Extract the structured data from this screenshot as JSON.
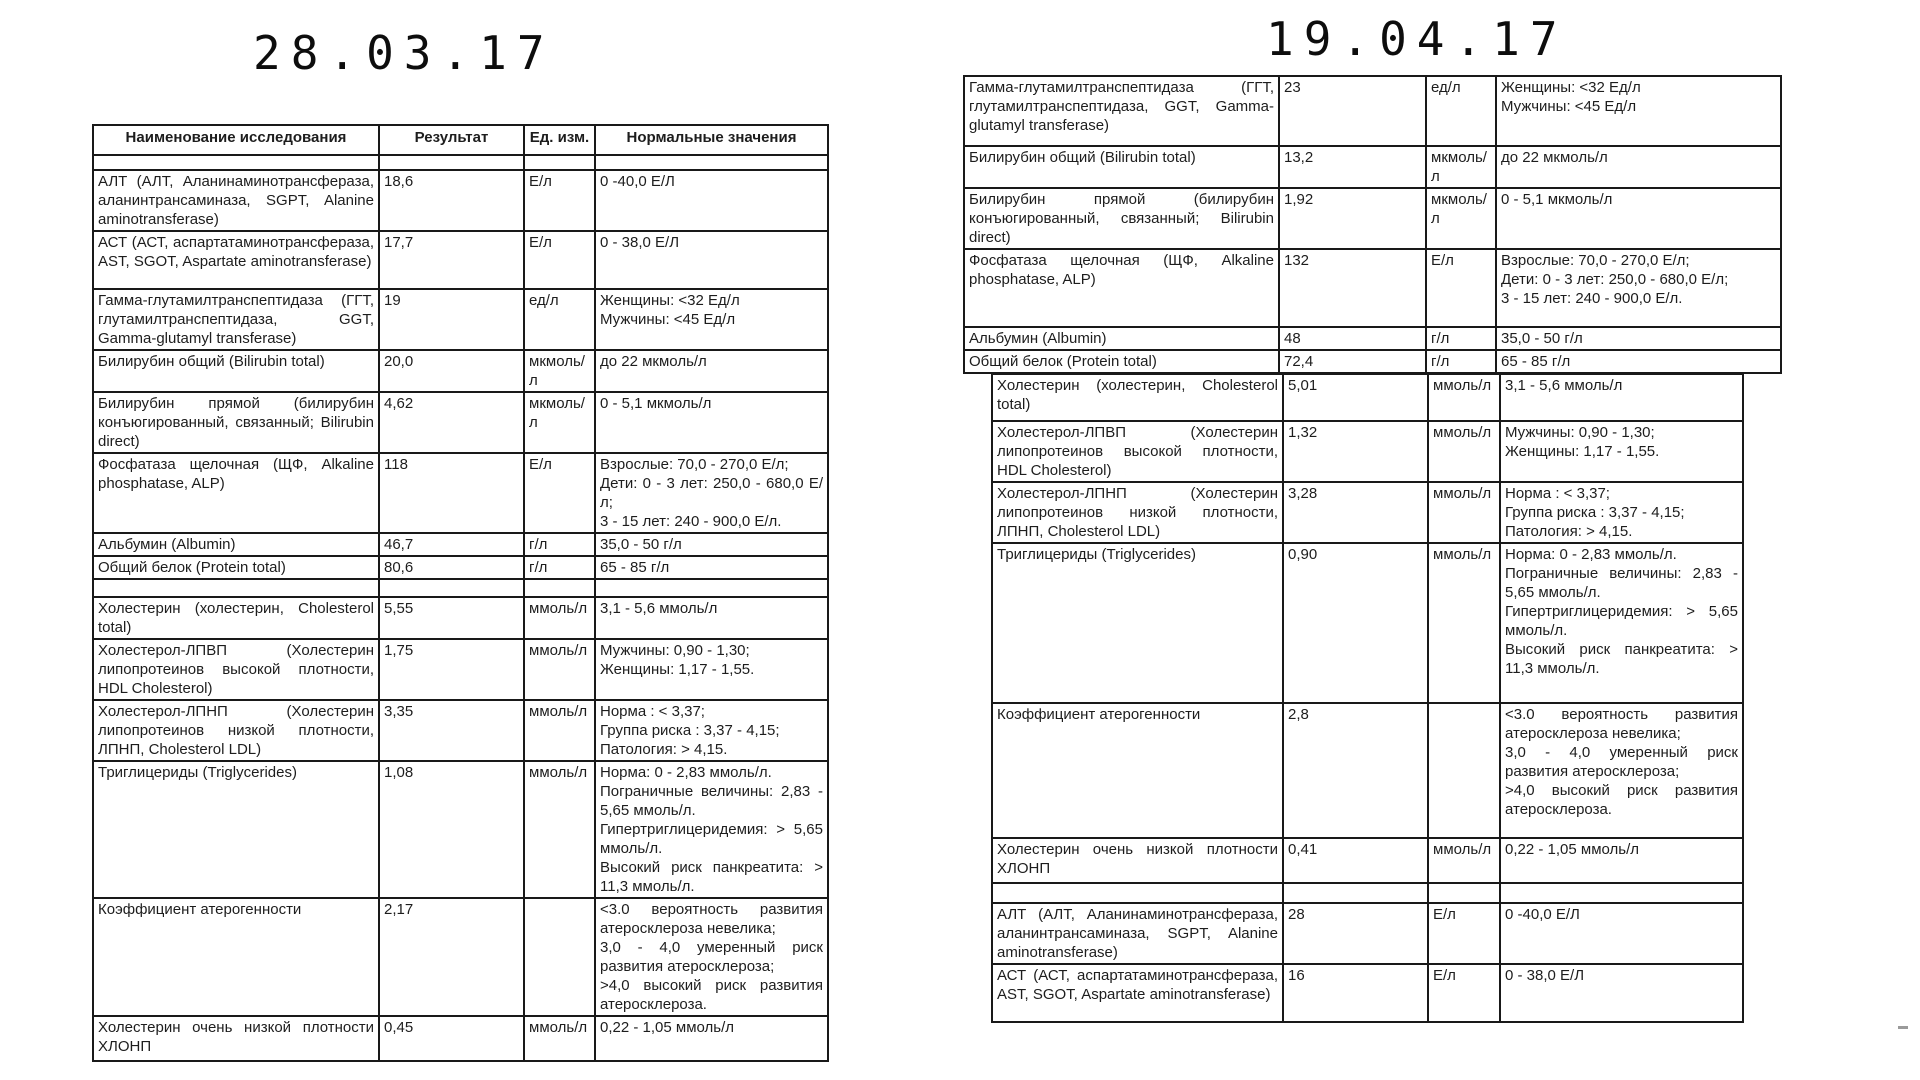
{
  "left_page": {
    "date": "28.03.17",
    "table": {
      "headers": [
        "Наименование исследования",
        "Результат",
        "Ед. изм.",
        "Нормальные значения"
      ],
      "rows": [
        {
          "name": "",
          "result": "",
          "unit": "",
          "normal": ""
        },
        {
          "name": "АЛТ (АЛТ, Аланинаминотрансфераза, аланинтрансаминаза, SGPT, Alanine aminotransferase)",
          "result": "18,6",
          "unit": "Е/л",
          "normal": "0 -40,0 Е/Л"
        },
        {
          "name": "АСТ (АСТ, аспартатаминотрансфераза, AST, SGOT, Aspartate aminotransferase)",
          "result": "17,7",
          "unit": "Е/л",
          "normal": "0 - 38,0 Е/Л"
        },
        {
          "name": "Гамма-глутамилтранспептидаза (ГГТ, глутамилтранспептидаза, GGT, Gamma-glutamyl transferase)",
          "result": "19",
          "unit": "ед/л",
          "normal": "Женщины: <32 Ед/л\nМужчины: <45 Ед/л"
        },
        {
          "name": "Билирубин общий (Bilirubin total)",
          "result": "20,0",
          "unit": "мкмоль/л",
          "normal": "до 22 мкмоль/л"
        },
        {
          "name": "Билирубин прямой (билирубин конъюгированный, связанный; Bilirubin direct)",
          "result": "4,62",
          "unit": "мкмоль/л",
          "normal": "0 - 5,1 мкмоль/л"
        },
        {
          "name": "Фосфатаза щелочная (ЩФ, Alkaline phosphatase, ALP)",
          "result": "118",
          "unit": "Е/л",
          "normal": "Взрослые: 70,0 - 270,0  Е/л;\nДети: 0 - 3 лет: 250,0 - 680,0 Е/л;\n3 - 15 лет: 240 - 900,0  Е/л."
        },
        {
          "name": "Альбумин (Albumin)",
          "result": "46,7",
          "unit": "г/л",
          "normal": "35,0 - 50  г/л"
        },
        {
          "name": "Общий белок (Protein total)",
          "result": "80,6",
          "unit": "г/л",
          "normal": "65 - 85 г/л"
        },
        {
          "name": "",
          "result": "",
          "unit": "",
          "normal": ""
        },
        {
          "name": "Холестерин (холестерин, Cholesterol total)",
          "result": "5,55",
          "unit": "ммоль/л",
          "normal": "3,1 - 5,6 ммоль/л"
        },
        {
          "name": "Холестерол-ЛПВП (Холестерин липопротеинов высокой плотности, HDL Cholesterol)",
          "result": "1,75",
          "unit": "ммоль/л",
          "normal": "Мужчины: 0,90 - 1,30;\nЖенщины: 1,17 - 1,55."
        },
        {
          "name": "Холестерол-ЛПНП (Холестерин липопротеинов низкой плотности, ЛПНП, Cholesterol LDL)",
          "result": "3,35",
          "unit": "ммоль/л",
          "normal": "Норма : < 3,37;\nГруппа риска : 3,37 - 4,15;\nПатология: > 4,15."
        },
        {
          "name": "Триглицериды (Triglycerides)",
          "result": "1,08",
          "unit": "ммоль/л",
          "normal": "Норма: 0 - 2,83 ммоль/л.\nПограничные величины: 2,83 - 5,65 ммоль/л.\nГипертриглицеридемия: > 5,65 ммоль/л.\nВысокий риск панкреатита: > 11,3 ммоль/л."
        },
        {
          "name": "Коэффициент атерогенности",
          "result": "2,17",
          "unit": "",
          "normal": "<3.0 вероятность развития атеросклероза невелика;\n3,0 - 4,0 умеренный риск развития атеросклероза;\n>4,0 высокий риск развития атеросклероза."
        },
        {
          "name": "Холестерин очень низкой плотности ХЛОНП",
          "result": "0,45",
          "unit": "ммоль/л",
          "normal": "0,22 - 1,05 ммоль/л"
        }
      ]
    }
  },
  "right_page": {
    "date": "19.04.17",
    "table1": {
      "rows": [
        {
          "name": "Гамма-глутамилтранспептидаза (ГГТ, глутамилтранспептидаза, GGT, Gamma-glutamyl transferase)",
          "result": "23",
          "unit": "ед/л",
          "normal": "Женщины: <32 Ед/л\nМужчины: <45 Ед/л"
        },
        {
          "name": "Билирубин общий (Bilirubin total)",
          "result": "13,2",
          "unit": "мкмоль/л",
          "normal": "до 22 мкмоль/л"
        },
        {
          "name": "Билирубин прямой (билирубин конъюгированный, связанный; Bilirubin direct)",
          "result": "1,92",
          "unit": "мкмоль/л",
          "normal": "0 - 5,1 мкмоль/л"
        },
        {
          "name": "Фосфатаза щелочная (ЩФ, Alkaline phosphatase, ALP)",
          "result": "132",
          "unit": "Е/л",
          "normal": "Взрослые: 70,0 - 270,0  Е/л;\nДети: 0 - 3 лет: 250,0 - 680,0 Е/л;\n3 - 15 лет: 240 - 900,0  Е/л."
        },
        {
          "name": "Альбумин (Albumin)",
          "result": "48",
          "unit": "г/л",
          "normal": "35,0 - 50  г/л"
        },
        {
          "name": "Общий белок (Protein total)",
          "result": "72,4",
          "unit": "г/л",
          "normal": "65 - 85 г/л"
        }
      ]
    },
    "table2": {
      "rows": [
        {
          "name": "Холестерин (холестерин, Cholesterol total)",
          "result": "5,01",
          "unit": "ммоль/л",
          "normal": "3,1 - 5,6 ммоль/л"
        },
        {
          "name": "Холестерол-ЛПВП (Холестерин липопротеинов высокой плотности, HDL Cholesterol)",
          "result": "1,32",
          "unit": "ммоль/л",
          "normal": "Мужчины: 0,90 - 1,30;\nЖенщины: 1,17 - 1,55."
        },
        {
          "name": "Холестерол-ЛПНП (Холестерин липопротеинов низкой плотности, ЛПНП, Cholesterol LDL)",
          "result": "3,28",
          "unit": "ммоль/л",
          "normal": "Норма : < 3,37;\nГруппа риска : 3,37 - 4,15;\nПатология: > 4,15."
        },
        {
          "name": "Триглицериды (Triglycerides)",
          "result": "0,90",
          "unit": "ммоль/л",
          "normal": "Норма: 0 - 2,83 ммоль/л.\nПограничные величины: 2,83 - 5,65 ммоль/л.\nГипертриглицеридемия: > 5,65 ммоль/л.\nВысокий риск панкреатита: > 11,3 ммоль/л."
        },
        {
          "name": "Коэффициент атерогенности",
          "result": "2,8",
          "unit": "",
          "normal": "<3.0 вероятность развития атеросклероза невелика;\n3,0 - 4,0 умеренный риск развития атеросклероза;\n>4,0 высокий риск развития атеросклероза."
        },
        {
          "name": "Холестерин очень низкой плотности ХЛОНП",
          "result": "0,41",
          "unit": "ммоль/л",
          "normal": "0,22 - 1,05 ммоль/л"
        },
        {
          "name": "",
          "result": "",
          "unit": "",
          "normal": ""
        },
        {
          "name": "АЛТ (АЛТ, Аланинаминотрансфераза, аланинтрансаминаза, SGPT, Alanine aminotransferase)",
          "result": "28",
          "unit": "Е/л",
          "normal": "0 -40,0 Е/Л"
        },
        {
          "name": "АСТ (АСТ, аспартатаминотрансфераза, AST, SGOT, Aspartate aminotransferase)",
          "result": "16",
          "unit": "Е/л",
          "normal": "0 - 38,0 Е/Л"
        }
      ]
    }
  }
}
